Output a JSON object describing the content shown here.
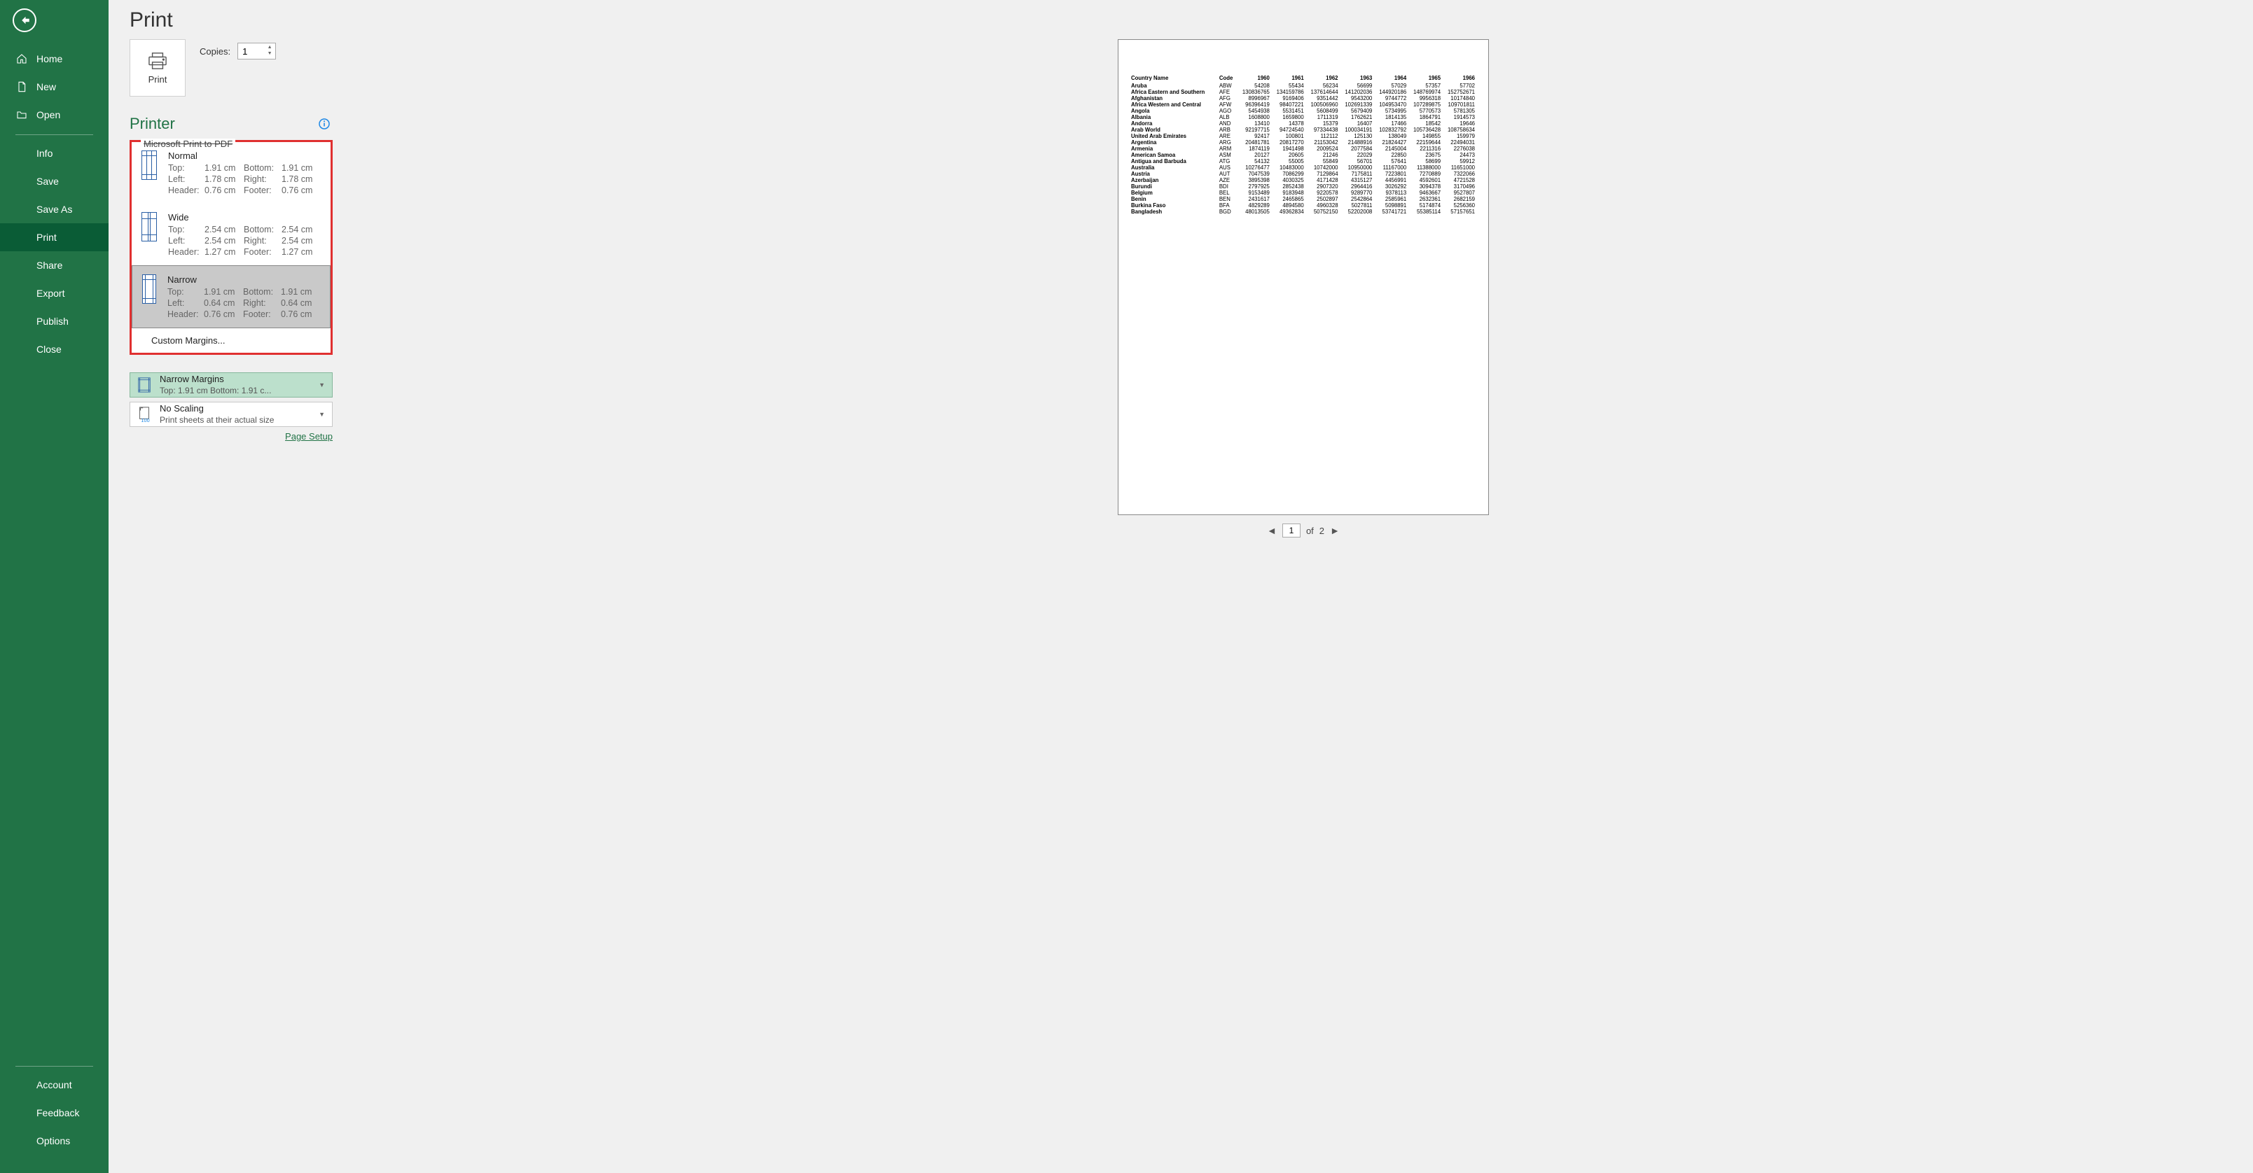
{
  "colors": {
    "brand": "#217346",
    "brandDark": "#0a5c36",
    "red": "#e03030",
    "info": "#1e88e5",
    "greenDD": "#bce0cc"
  },
  "page": {
    "title": "Print"
  },
  "sidebar": {
    "top": [
      {
        "key": "home",
        "label": "Home",
        "icon": "home"
      },
      {
        "key": "new",
        "label": "New",
        "icon": "file"
      },
      {
        "key": "open",
        "label": "Open",
        "icon": "folder"
      }
    ],
    "mid": [
      {
        "key": "info",
        "label": "Info"
      },
      {
        "key": "save",
        "label": "Save"
      },
      {
        "key": "saveas",
        "label": "Save As"
      },
      {
        "key": "print",
        "label": "Print",
        "active": true
      },
      {
        "key": "share",
        "label": "Share"
      },
      {
        "key": "export",
        "label": "Export"
      },
      {
        "key": "publish",
        "label": "Publish"
      },
      {
        "key": "close",
        "label": "Close"
      }
    ],
    "bottom": [
      {
        "key": "account",
        "label": "Account"
      },
      {
        "key": "feedback",
        "label": "Feedback"
      },
      {
        "key": "options",
        "label": "Options"
      }
    ]
  },
  "print": {
    "button_label": "Print",
    "copies_label": "Copies:",
    "copies_value": "1"
  },
  "printer": {
    "heading": "Printer",
    "hidden_current": "Microsoft Print to PDF"
  },
  "margins_popup": {
    "options": [
      {
        "name": "Normal",
        "top": "1.91 cm",
        "bottom": "1.91 cm",
        "left": "1.78 cm",
        "right": "1.78 cm",
        "header": "0.76 cm",
        "footer": "0.76 cm",
        "thumb": "normal"
      },
      {
        "name": "Wide",
        "top": "2.54 cm",
        "bottom": "2.54 cm",
        "left": "2.54 cm",
        "right": "2.54 cm",
        "header": "1.27 cm",
        "footer": "1.27 cm",
        "thumb": "wide"
      },
      {
        "name": "Narrow",
        "top": "1.91 cm",
        "bottom": "1.91 cm",
        "left": "0.64 cm",
        "right": "0.64 cm",
        "header": "0.76 cm",
        "footer": "0.76 cm",
        "thumb": "narrow",
        "selected": true
      }
    ],
    "labels": {
      "top": "Top:",
      "bottom": "Bottom:",
      "left": "Left:",
      "right": "Right:",
      "header": "Header:",
      "footer": "Footer:"
    },
    "custom": "Custom Margins..."
  },
  "settings": {
    "margins_dd": {
      "primary": "Narrow Margins",
      "secondary": "Top: 1.91 cm Bottom: 1.91 c..."
    },
    "scaling_dd": {
      "primary": "No Scaling",
      "secondary": "Print sheets at their actual size"
    },
    "page_setup": "Page Setup"
  },
  "pager": {
    "current": "1",
    "total": "2",
    "of_label": "of"
  },
  "preview": {
    "columns": [
      "Country Name",
      "Code",
      "1960",
      "1961",
      "1962",
      "1963",
      "1964",
      "1965",
      "1966"
    ],
    "rows": [
      [
        "Aruba",
        "ABW",
        "54208",
        "55434",
        "56234",
        "56699",
        "57029",
        "57357",
        "57702"
      ],
      [
        "Africa Eastern and Southern",
        "AFE",
        "130836765",
        "134159786",
        "137614644",
        "141202036",
        "144920186",
        "148769974",
        "152752671"
      ],
      [
        "Afghanistan",
        "AFG",
        "8996967",
        "9169406",
        "9351442",
        "9543200",
        "9744772",
        "9956318",
        "10174840"
      ],
      [
        "Africa Western and Central",
        "AFW",
        "96396419",
        "98407221",
        "100506960",
        "102691339",
        "104953470",
        "107289875",
        "109701811"
      ],
      [
        "Angola",
        "AGO",
        "5454938",
        "5531451",
        "5608499",
        "5679409",
        "5734995",
        "5770573",
        "5781305"
      ],
      [
        "Albania",
        "ALB",
        "1608800",
        "1659800",
        "1711319",
        "1762621",
        "1814135",
        "1864791",
        "1914573"
      ],
      [
        "Andorra",
        "AND",
        "13410",
        "14378",
        "15379",
        "16407",
        "17466",
        "18542",
        "19646"
      ],
      [
        "Arab World",
        "ARB",
        "92197715",
        "94724540",
        "97334438",
        "100034191",
        "102832792",
        "105736428",
        "108758634"
      ],
      [
        "United Arab Emirates",
        "ARE",
        "92417",
        "100801",
        "112112",
        "125130",
        "138049",
        "149855",
        "159979"
      ],
      [
        "Argentina",
        "ARG",
        "20481781",
        "20817270",
        "21153042",
        "21488916",
        "21824427",
        "22159644",
        "22494031"
      ],
      [
        "Armenia",
        "ARM",
        "1874119",
        "1941498",
        "2009524",
        "2077584",
        "2145004",
        "2211316",
        "2276038"
      ],
      [
        "American Samoa",
        "ASM",
        "20127",
        "20605",
        "21246",
        "22029",
        "22850",
        "23675",
        "24473"
      ],
      [
        "Antigua and Barbuda",
        "ATG",
        "54132",
        "55005",
        "55849",
        "56701",
        "57641",
        "58699",
        "59912"
      ],
      [
        "Australia",
        "AUS",
        "10276477",
        "10483000",
        "10742000",
        "10950000",
        "11167000",
        "11388000",
        "11651000"
      ],
      [
        "Austria",
        "AUT",
        "7047539",
        "7086299",
        "7129864",
        "7175811",
        "7223801",
        "7270889",
        "7322066"
      ],
      [
        "Azerbaijan",
        "AZE",
        "3895398",
        "4030325",
        "4171428",
        "4315127",
        "4456991",
        "4592601",
        "4721528"
      ],
      [
        "Burundi",
        "BDI",
        "2797925",
        "2852438",
        "2907320",
        "2964416",
        "3026292",
        "3094378",
        "3170496"
      ],
      [
        "Belgium",
        "BEL",
        "9153489",
        "9183948",
        "9220578",
        "9289770",
        "9378113",
        "9463667",
        "9527807"
      ],
      [
        "Benin",
        "BEN",
        "2431617",
        "2465865",
        "2502897",
        "2542864",
        "2585961",
        "2632361",
        "2682159"
      ],
      [
        "Burkina Faso",
        "BFA",
        "4829289",
        "4894580",
        "4960328",
        "5027811",
        "5098891",
        "5174874",
        "5256360"
      ],
      [
        "Bangladesh",
        "BGD",
        "48013505",
        "49362834",
        "50752150",
        "52202008",
        "53741721",
        "55385114",
        "57157651"
      ]
    ]
  }
}
